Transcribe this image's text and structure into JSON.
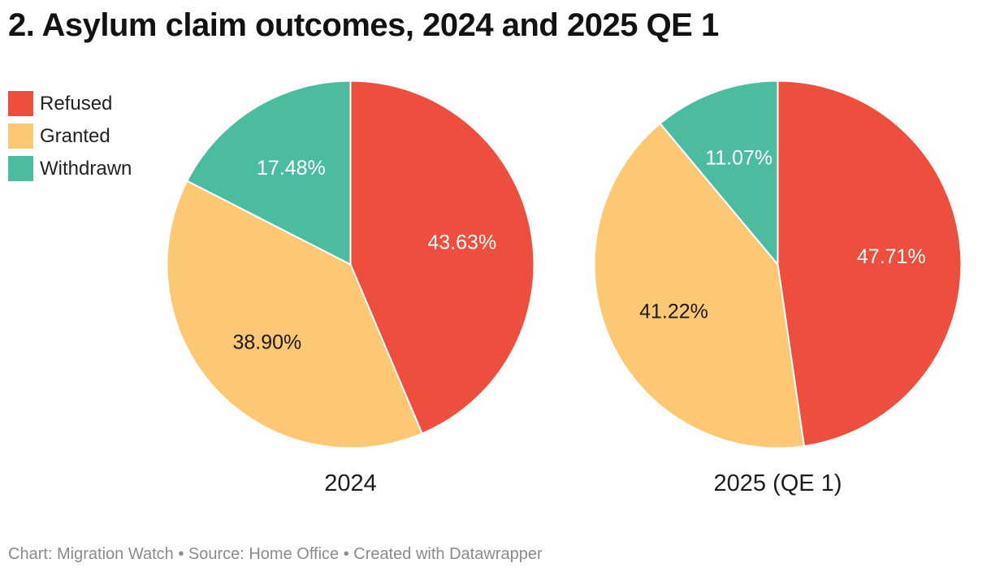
{
  "header": {
    "title": "2. Asylum claim outcomes, 2024 and 2025 QE 1"
  },
  "footer": {
    "text": "Chart: Migration Watch • Source: Home Office • Created with Datawrapper"
  },
  "chart_data": {
    "type": "pie",
    "title": "2. Asylum claim outcomes, 2024 and 2025 QE 1",
    "categories": [
      "Refused",
      "Granted",
      "Withdrawn"
    ],
    "colors": [
      "#ee4e3e",
      "#fdc873",
      "#4cbca0"
    ],
    "label_colors": [
      "#ffffff",
      "#1a1a1a",
      "#ffffff"
    ],
    "legend_position": "top-left",
    "start_angle_deg": 0,
    "direction": "clockwise",
    "slice_label_radius_fraction": 0.62,
    "slice_separator_color": "#ffffff",
    "pies": [
      {
        "label": "2024",
        "values": [
          43.63,
          38.9,
          17.48
        ],
        "value_labels": [
          "43.63%",
          "38.90%",
          "17.48%"
        ]
      },
      {
        "label": "2025 (QE 1)",
        "values": [
          47.71,
          41.22,
          11.07
        ],
        "value_labels": [
          "47.71%",
          "41.22%",
          "11.07%"
        ]
      }
    ]
  }
}
